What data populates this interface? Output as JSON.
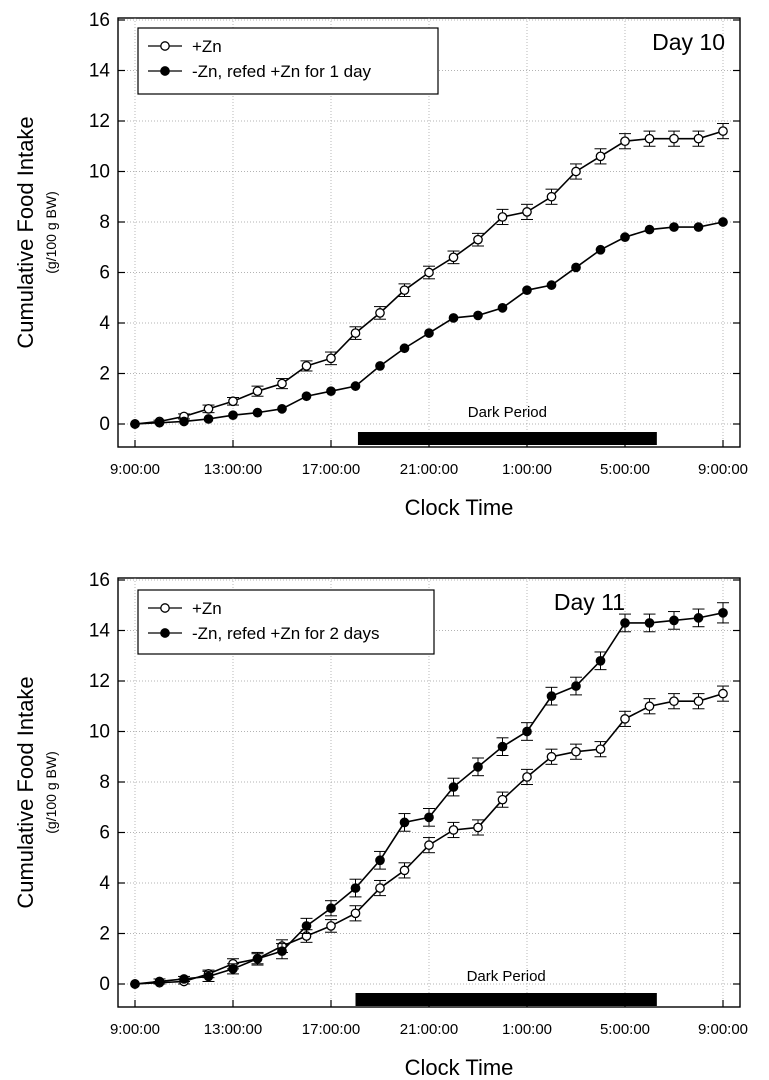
{
  "chart_data": [
    {
      "type": "line",
      "panel_label": "Day 10",
      "xlabel": "Clock Time",
      "ylabel": "Cumulative Food Intake",
      "ylabel_sub": "(g/100 g BW)",
      "x_tick_labels": [
        "9:00:00",
        "13:00:00",
        "17:00:00",
        "21:00:00",
        "1:00:00",
        "5:00:00",
        "9:00:00"
      ],
      "x_unit": "hours since 9:00:00",
      "xlim": [
        0,
        24
      ],
      "ylim": [
        0,
        16
      ],
      "y_ticks": [
        0,
        2,
        4,
        6,
        8,
        10,
        12,
        14,
        16
      ],
      "grid": true,
      "legend_position": "top-left",
      "dark_period": {
        "label": "Dark Period",
        "start": 9.1,
        "end": 21.3
      },
      "series": [
        {
          "name": "+Zn",
          "marker": "open-circle",
          "x": [
            0,
            1,
            2,
            3,
            4,
            5,
            6,
            7,
            8,
            9,
            10,
            11,
            12,
            13,
            14,
            15,
            16,
            17,
            18,
            19,
            20,
            21,
            22,
            23,
            24
          ],
          "y": [
            0,
            0.1,
            0.3,
            0.6,
            0.9,
            1.3,
            1.6,
            2.3,
            2.6,
            3.6,
            4.4,
            5.3,
            6.0,
            6.6,
            7.3,
            8.2,
            8.4,
            9.0,
            10.0,
            10.6,
            11.2,
            11.3,
            11.3,
            11.3,
            11.6
          ],
          "error": [
            0,
            0.05,
            0.1,
            0.15,
            0.15,
            0.2,
            0.2,
            0.2,
            0.25,
            0.25,
            0.25,
            0.25,
            0.25,
            0.25,
            0.25,
            0.3,
            0.3,
            0.3,
            0.3,
            0.3,
            0.3,
            0.3,
            0.3,
            0.3,
            0.3
          ]
        },
        {
          "name": "-Zn, refed +Zn for 1 day",
          "marker": "filled-circle",
          "x": [
            0,
            1,
            2,
            3,
            4,
            5,
            6,
            7,
            8,
            9,
            10,
            11,
            12,
            13,
            14,
            15,
            16,
            17,
            18,
            19,
            20,
            21,
            22,
            23,
            24
          ],
          "y": [
            0,
            0.05,
            0.1,
            0.2,
            0.35,
            0.45,
            0.6,
            1.1,
            1.3,
            1.5,
            2.3,
            3.0,
            3.6,
            4.2,
            4.3,
            4.6,
            5.3,
            5.5,
            6.2,
            6.9,
            7.4,
            7.7,
            7.8,
            7.8,
            8.0
          ]
        }
      ]
    },
    {
      "type": "line",
      "panel_label": "Day 11",
      "xlabel": "Clock Time",
      "ylabel": "Cumulative Food Intake",
      "ylabel_sub": "(g/100 g BW)",
      "x_tick_labels": [
        "9:00:00",
        "13:00:00",
        "17:00:00",
        "21:00:00",
        "1:00:00",
        "5:00:00",
        "9:00:00"
      ],
      "x_unit": "hours since 9:00:00",
      "xlim": [
        0,
        24
      ],
      "ylim": [
        0,
        16
      ],
      "y_ticks": [
        0,
        2,
        4,
        6,
        8,
        10,
        12,
        14,
        16
      ],
      "grid": true,
      "legend_position": "top-left",
      "dark_period": {
        "label": "Dark Period",
        "start": 9.0,
        "end": 21.3
      },
      "series": [
        {
          "name": "+Zn",
          "marker": "open-circle",
          "x": [
            0,
            1,
            2,
            3,
            4,
            5,
            6,
            7,
            8,
            9,
            10,
            11,
            12,
            13,
            14,
            15,
            16,
            17,
            18,
            19,
            20,
            21,
            22,
            23,
            24
          ],
          "y": [
            0,
            0.05,
            0.1,
            0.4,
            0.8,
            1.0,
            1.5,
            1.9,
            2.3,
            2.8,
            3.8,
            4.5,
            5.5,
            6.1,
            6.2,
            7.3,
            8.2,
            9.0,
            9.2,
            9.3,
            10.5,
            11.0,
            11.2,
            11.2,
            11.5
          ],
          "error": [
            0,
            0.05,
            0.1,
            0.15,
            0.2,
            0.2,
            0.25,
            0.25,
            0.25,
            0.3,
            0.3,
            0.3,
            0.3,
            0.3,
            0.3,
            0.3,
            0.3,
            0.3,
            0.3,
            0.3,
            0.3,
            0.3,
            0.3,
            0.3,
            0.3
          ]
        },
        {
          "name": "-Zn, refed +Zn for 2 days",
          "marker": "filled-circle",
          "x": [
            0,
            1,
            2,
            3,
            4,
            5,
            6,
            7,
            8,
            9,
            10,
            11,
            12,
            13,
            14,
            15,
            16,
            17,
            18,
            19,
            20,
            21,
            22,
            23,
            24
          ],
          "y": [
            0,
            0.1,
            0.2,
            0.3,
            0.6,
            1.0,
            1.3,
            2.3,
            3.0,
            3.8,
            4.9,
            6.4,
            6.6,
            7.8,
            8.6,
            9.4,
            10.0,
            11.4,
            11.8,
            12.8,
            14.3,
            14.3,
            14.4,
            14.5,
            14.7
          ],
          "error": [
            0,
            0.1,
            0.1,
            0.2,
            0.2,
            0.25,
            0.3,
            0.3,
            0.3,
            0.35,
            0.35,
            0.35,
            0.35,
            0.35,
            0.35,
            0.35,
            0.35,
            0.35,
            0.35,
            0.35,
            0.35,
            0.35,
            0.35,
            0.35,
            0.4
          ]
        }
      ]
    }
  ]
}
